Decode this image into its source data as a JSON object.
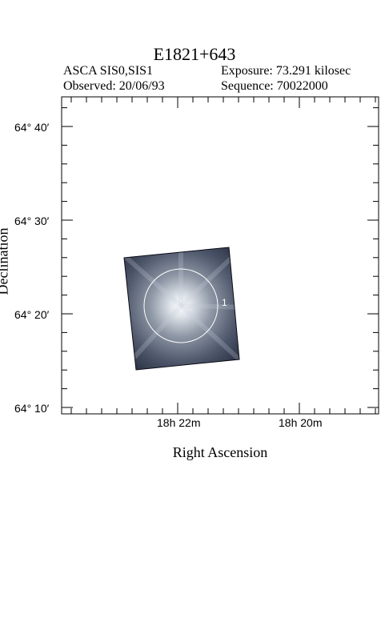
{
  "header": {
    "title": "E1821+643",
    "instrument": "ASCA SIS0,SIS1",
    "exposure": "Exposure: 73.291 kilosec",
    "observed": "Observed: 20/06/93",
    "sequence": "Sequence: 70022000"
  },
  "axes": {
    "ylabel": "Declination",
    "xlabel": "Right Ascension",
    "yticks": [
      {
        "label": "64° 40′",
        "value": 40
      },
      {
        "label": "64° 30′",
        "value": 30
      },
      {
        "label": "64° 20′",
        "value": 20
      },
      {
        "label": "64° 10′",
        "value": 10
      }
    ],
    "xticks": [
      {
        "label": "18h 22m",
        "value": 22
      },
      {
        "label": "18h 20m",
        "value": 20
      }
    ]
  },
  "source": {
    "label": "1"
  },
  "colors": {
    "image_dark": "#1f2638",
    "image_glow": "#e9eef3",
    "circle": "#ffffff"
  }
}
